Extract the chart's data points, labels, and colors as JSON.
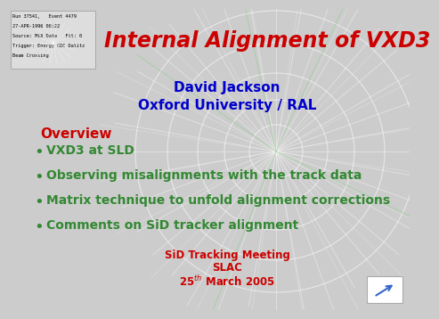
{
  "title": "Internal Alignment of VXD3",
  "title_color": "#cc0000",
  "title_fontsize": 17,
  "author": "David Jackson",
  "author_color": "#0000cc",
  "author_fontsize": 11,
  "institution": "Oxford University / RAL",
  "institution_color": "#0000cc",
  "institution_fontsize": 11,
  "overview_label": "Overview",
  "overview_color": "#cc0000",
  "overview_fontsize": 11,
  "bullet_items": [
    "VXD3 at SLD",
    "Observing misalignments with the track data",
    "Matrix technique to unfold alignment corrections",
    "Comments on SiD tracker alignment"
  ],
  "bullet_color": "#338833",
  "bullet_fontsize": 10,
  "footer_line1": "SiD Tracking Meeting",
  "footer_line2": "SLAC",
  "footer_color": "#cc0000",
  "footer_fontsize": 8.5,
  "background_color": "#cccccc",
  "circle_color": "#ffffff",
  "track_color_white": "#ffffff",
  "track_color_green": "#99cc99"
}
